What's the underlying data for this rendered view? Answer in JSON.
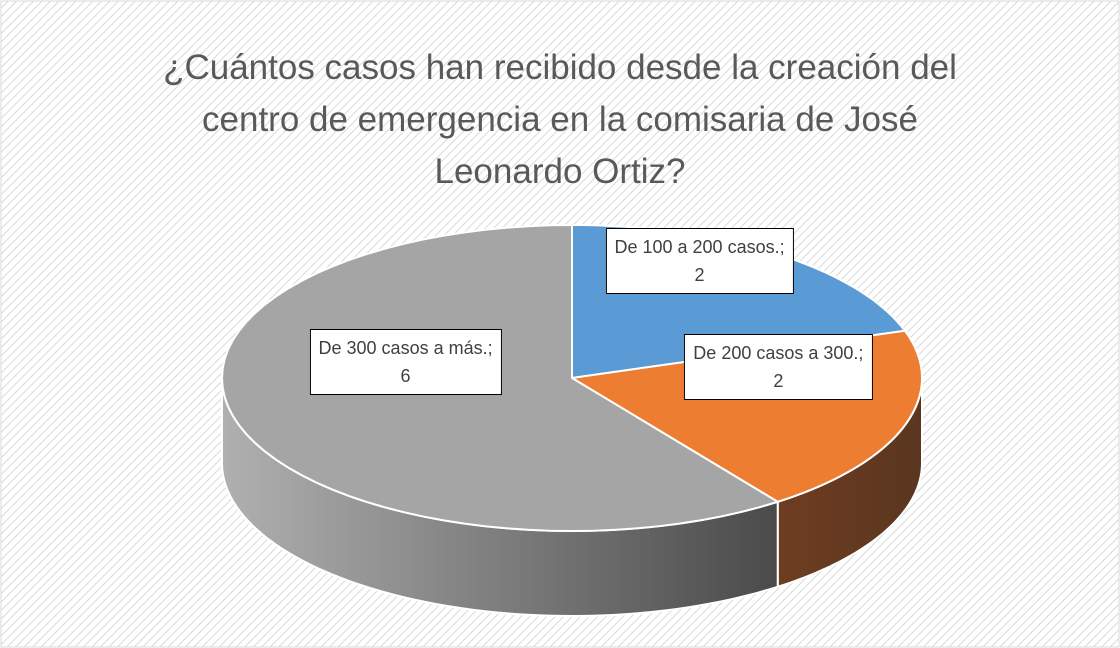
{
  "chart_data": {
    "type": "pie",
    "title": "¿Cuántos casos han recibido desde la creación del centro de emergencia en la comisaria de José Leonardo Ortiz?",
    "categories": [
      "De 100 a 200 casos.",
      "De 200 casos a 300.",
      "De 300 casos a más."
    ],
    "values": [
      2,
      2,
      6
    ],
    "colors": [
      "#5b9bd5",
      "#ed7d31",
      "#a5a5a5"
    ],
    "label_separator": ";",
    "start_angle": 0,
    "direction": "clockwise"
  }
}
